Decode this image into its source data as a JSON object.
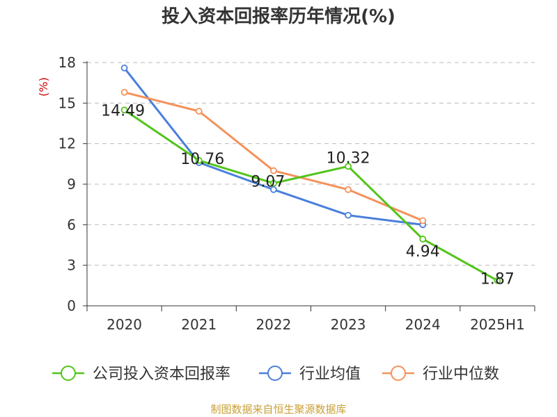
{
  "chart_data": {
    "type": "line",
    "title": "投入资本回报率历年情况(%)",
    "ylabel": "(%)",
    "xlabel": "",
    "categories": [
      "2020",
      "2021",
      "2022",
      "2023",
      "2024",
      "2025H1"
    ],
    "ylim": [
      0,
      18
    ],
    "yticks": [
      0,
      3,
      6,
      9,
      12,
      15,
      18
    ],
    "grid": true,
    "legend_position": "bottom",
    "series": [
      {
        "name": "公司投入资本回报率",
        "color": "#52c41a",
        "values": [
          14.49,
          10.76,
          9.07,
          10.32,
          4.94,
          1.87
        ],
        "labels": [
          "14.49",
          "10.76",
          "9.07",
          "10.32",
          "4.94",
          "1.87"
        ]
      },
      {
        "name": "行业均值",
        "color": "#4a7fdc",
        "values": [
          17.6,
          10.6,
          8.6,
          6.7,
          6.0,
          null
        ]
      },
      {
        "name": "行业中位数",
        "color": "#f5915a",
        "values": [
          15.8,
          14.4,
          10.0,
          8.6,
          6.3,
          null
        ]
      }
    ]
  },
  "source_note": "制图数据来自恒生聚源数据库"
}
